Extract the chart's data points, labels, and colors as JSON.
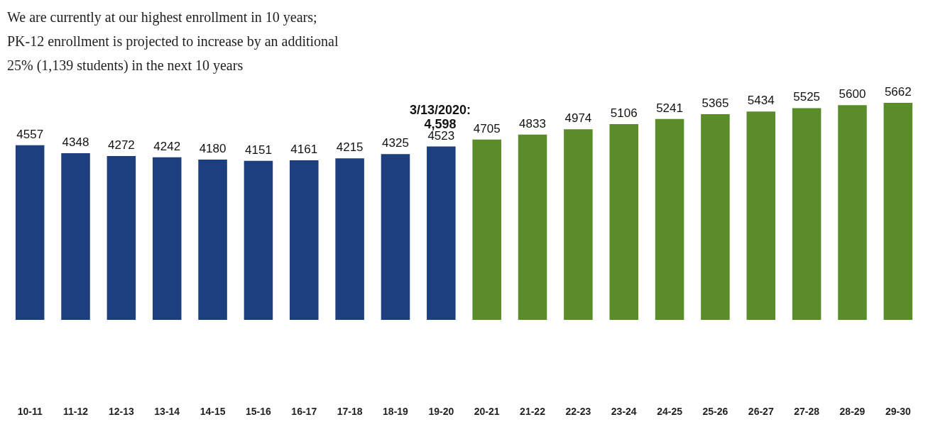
{
  "chart_data": {
    "type": "bar",
    "categories": [
      "10-11",
      "11-12",
      "12-13",
      "13-14",
      "14-15",
      "15-16",
      "16-17",
      "17-18",
      "18-19",
      "19-20",
      "20-21",
      "21-22",
      "22-23",
      "23-24",
      "24-25",
      "25-26",
      "26-27",
      "27-28",
      "28-29",
      "29-30"
    ],
    "values": [
      4557,
      4348,
      4272,
      4242,
      4180,
      4151,
      4161,
      4215,
      4325,
      4523,
      4705,
      4833,
      4974,
      5106,
      5241,
      5365,
      5434,
      5525,
      5600,
      5662
    ],
    "colors": [
      "#1e3f7e",
      "#1e3f7e",
      "#1e3f7e",
      "#1e3f7e",
      "#1e3f7e",
      "#1e3f7e",
      "#1e3f7e",
      "#1e3f7e",
      "#1e3f7e",
      "#1e3f7e",
      "#5b8c2a",
      "#5b8c2a",
      "#5b8c2a",
      "#5b8c2a",
      "#5b8c2a",
      "#5b8c2a",
      "#5b8c2a",
      "#5b8c2a",
      "#5b8c2a",
      "#5b8c2a"
    ],
    "data_labels": true,
    "tick_labels": "x",
    "annotations": [
      "We are currently at our highest enrollment in 10 years;",
      "PK-12 enrollment is projected to increase by an additional",
      "25% (1,139 students) in the next 10 years",
      "3/13/2020:\n4,598"
    ]
  }
}
